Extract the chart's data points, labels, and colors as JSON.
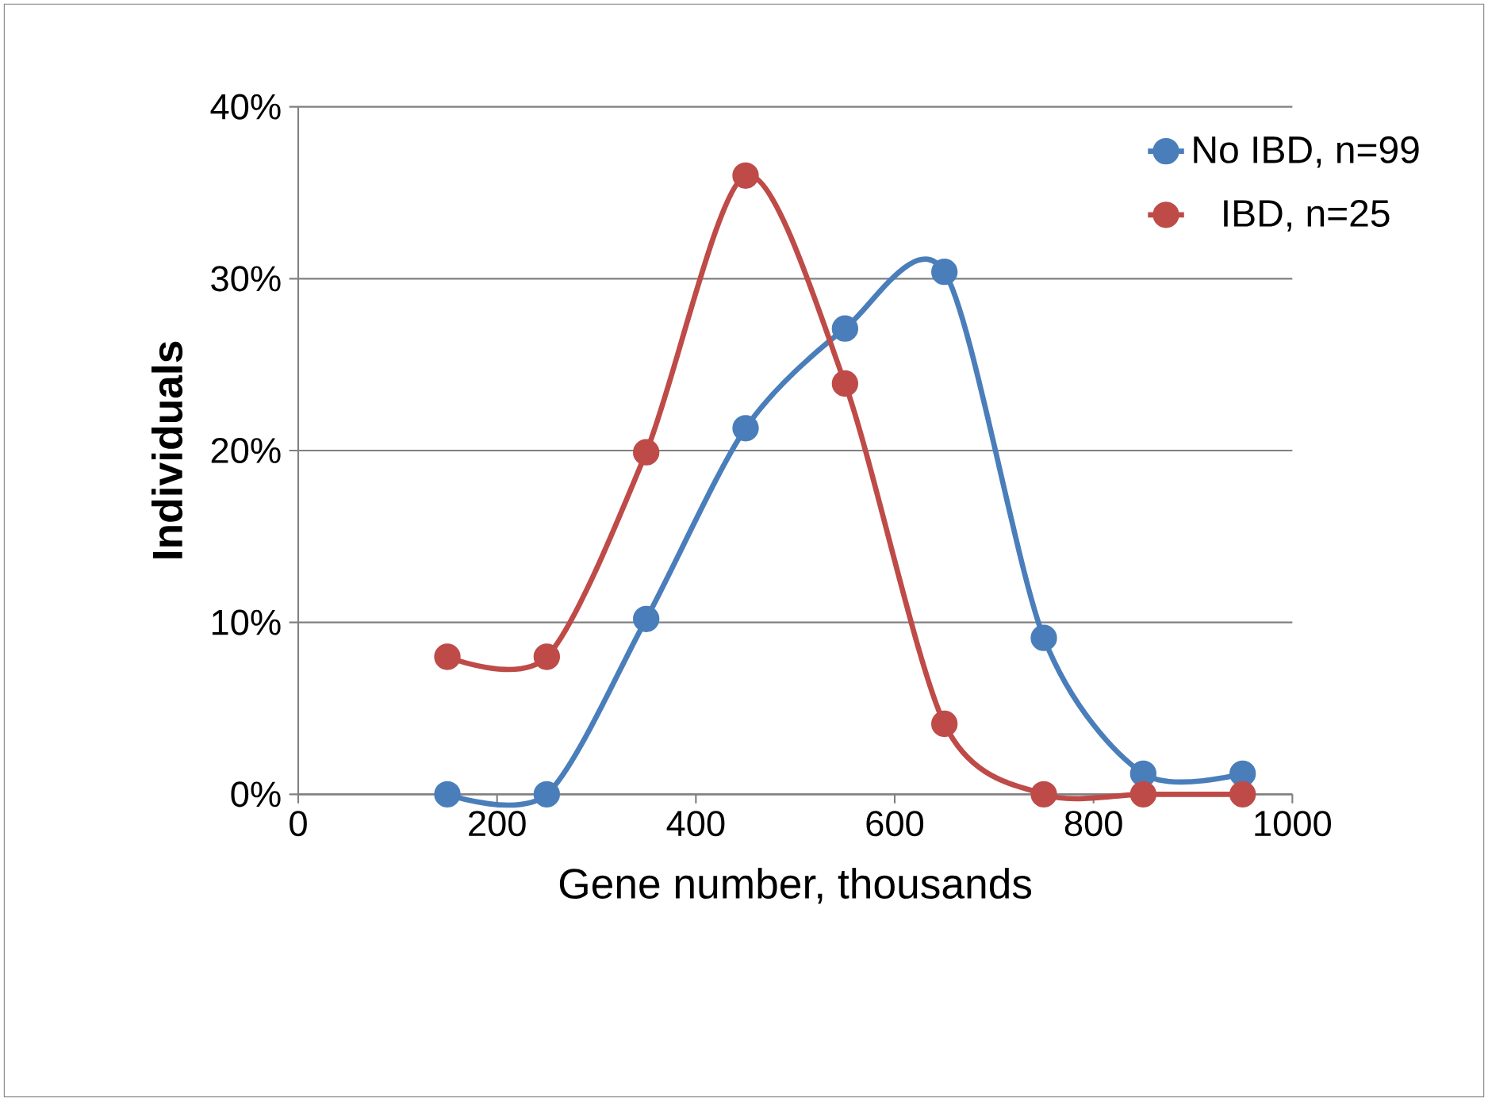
{
  "chart_data": {
    "type": "line",
    "xlabel": "Gene number, thousands",
    "ylabel": "Individuals",
    "xlim": [
      0,
      1000
    ],
    "xticks": [
      0,
      200,
      400,
      600,
      800,
      1000
    ],
    "ylim": [
      0,
      40
    ],
    "yticks": [
      {
        "value": 0,
        "label": "0%"
      },
      {
        "value": 10,
        "label": "10%"
      },
      {
        "value": 20,
        "label": "20%"
      },
      {
        "value": 30,
        "label": "30%"
      },
      {
        "value": 40,
        "label": "40%"
      }
    ],
    "grid": "y",
    "legend": "top right",
    "marker": "circle",
    "line_style": "solid",
    "x": [
      150,
      250,
      350,
      450,
      550,
      650,
      750,
      850,
      950
    ],
    "series": [
      {
        "name": "No IBD, n=99",
        "color": "#4a7ebb",
        "values": [
          0,
          0,
          10.2,
          21.3,
          27.1,
          30.4,
          9.1,
          1.2,
          1.2
        ]
      },
      {
        "name": "IBD, n=25",
        "color": "#be4b48",
        "values": [
          8.0,
          8.0,
          19.9,
          36.0,
          23.9,
          4.1,
          0,
          0,
          0
        ]
      }
    ]
  }
}
